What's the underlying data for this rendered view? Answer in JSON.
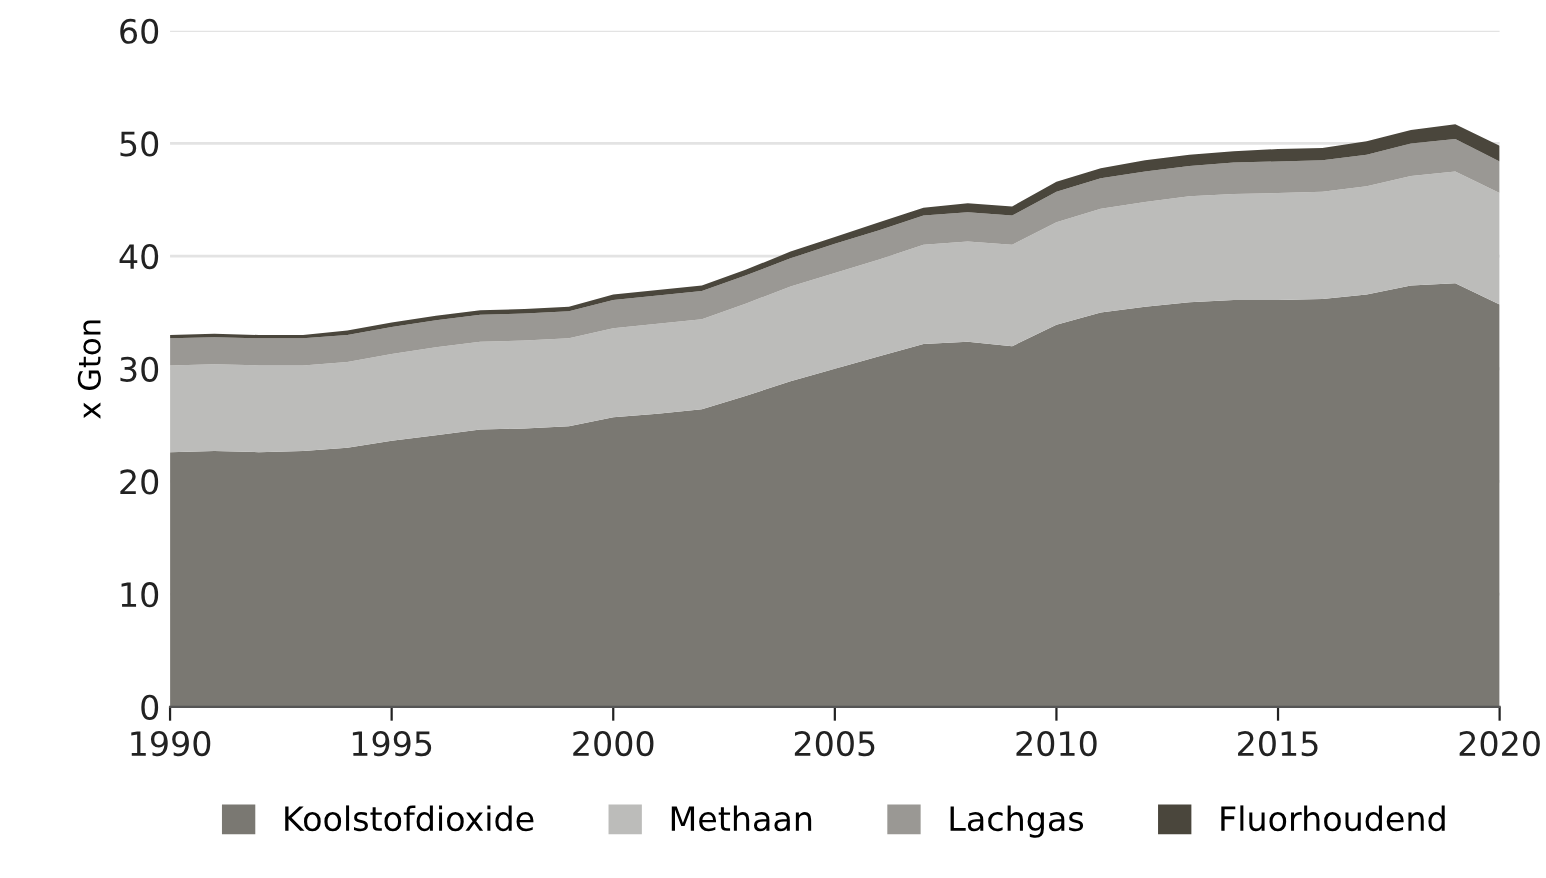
{
  "chart_data": {
    "type": "area",
    "stacked": true,
    "ylabel": "x Gton",
    "x": [
      1990,
      1991,
      1992,
      1993,
      1994,
      1995,
      1996,
      1997,
      1998,
      1999,
      2000,
      2001,
      2002,
      2003,
      2004,
      2005,
      2006,
      2007,
      2008,
      2009,
      2010,
      2011,
      2012,
      2013,
      2014,
      2015,
      2016,
      2017,
      2018,
      2019,
      2020
    ],
    "series": [
      {
        "name": "Koolstofdioxide",
        "color": "#7a7872",
        "values": [
          22.6,
          22.7,
          22.6,
          22.7,
          23.0,
          23.6,
          24.1,
          24.6,
          24.7,
          24.9,
          25.7,
          26.0,
          26.4,
          27.6,
          28.9,
          30.0,
          31.1,
          32.2,
          32.4,
          32.0,
          33.9,
          35.0,
          35.5,
          35.9,
          36.1,
          36.1,
          36.2,
          36.6,
          37.4,
          37.6,
          35.7
        ]
      },
      {
        "name": "Methaan",
        "color": "#bcbcba",
        "values": [
          7.7,
          7.7,
          7.7,
          7.6,
          7.6,
          7.7,
          7.8,
          7.8,
          7.8,
          7.8,
          7.9,
          8.0,
          8.0,
          8.2,
          8.4,
          8.5,
          8.6,
          8.8,
          8.9,
          9.0,
          9.1,
          9.2,
          9.3,
          9.4,
          9.4,
          9.5,
          9.5,
          9.6,
          9.7,
          9.9,
          9.9
        ]
      },
      {
        "name": "Lachgas",
        "color": "#9a9894",
        "values": [
          2.4,
          2.4,
          2.4,
          2.4,
          2.4,
          2.4,
          2.4,
          2.4,
          2.4,
          2.4,
          2.5,
          2.5,
          2.5,
          2.5,
          2.5,
          2.6,
          2.6,
          2.6,
          2.6,
          2.6,
          2.7,
          2.7,
          2.7,
          2.7,
          2.8,
          2.8,
          2.8,
          2.8,
          2.9,
          2.9,
          2.8
        ]
      },
      {
        "name": "Fluorhoudend",
        "color": "#4a463c",
        "values": [
          0.3,
          0.3,
          0.3,
          0.3,
          0.4,
          0.4,
          0.4,
          0.4,
          0.4,
          0.4,
          0.5,
          0.5,
          0.5,
          0.5,
          0.6,
          0.6,
          0.7,
          0.7,
          0.8,
          0.8,
          0.9,
          0.9,
          1.0,
          1.0,
          1.0,
          1.1,
          1.1,
          1.2,
          1.2,
          1.3,
          1.4
        ]
      }
    ],
    "xlim": [
      1990,
      2020
    ],
    "xticks": [
      1990,
      1995,
      2000,
      2005,
      2010,
      2015,
      2020
    ],
    "ylim": [
      0,
      60
    ],
    "yticks": [
      0,
      10,
      20,
      30,
      40,
      50,
      60
    ],
    "grid": "y",
    "legend": "bottom"
  }
}
